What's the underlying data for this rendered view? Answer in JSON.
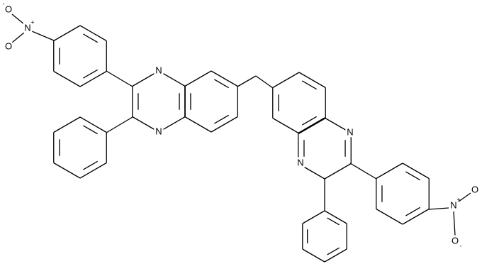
{
  "atoms": [
    {
      "label": "O",
      "charge": "-"
    },
    {
      "label": "N",
      "charge": "+"
    },
    {
      "label": "O"
    },
    {
      "label": "N"
    },
    {
      "label": "N"
    },
    {
      "label": "N"
    },
    {
      "label": "N"
    },
    {
      "label": "N",
      "charge": "+"
    },
    {
      "label": "O"
    },
    {
      "label": "O",
      "charge": "-"
    }
  ]
}
